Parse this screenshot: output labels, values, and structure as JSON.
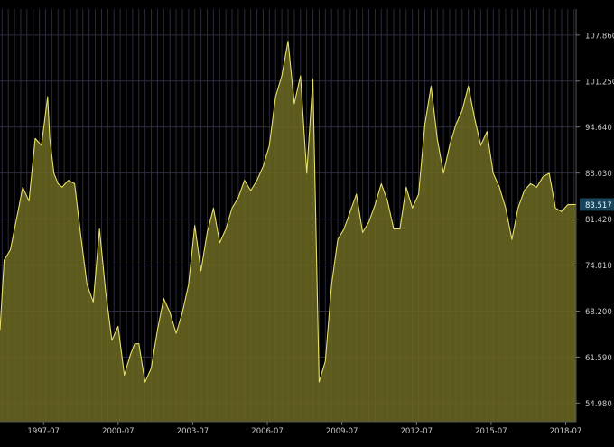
{
  "colors": {
    "background": "#000000",
    "grid": "#2b2b3e",
    "line": "#e6e06a",
    "fill": "#6d6a22",
    "axis_text": "#c8c8c8",
    "badge_bg": "#16455c",
    "badge_text": "#e8f4fa"
  },
  "chart_data": {
    "type": "area",
    "title": "",
    "xlabel": "",
    "ylabel": "",
    "x_tick_labels": [
      "1997-07",
      "2000-07",
      "2003-07",
      "2006-07",
      "2009-07",
      "2012-07",
      "2015-07",
      "2018-07"
    ],
    "y_tick_labels": [
      "54.980",
      "61.590",
      "68.200",
      "74.810",
      "81.420",
      "88.030",
      "94.640",
      "101.250",
      "107.860"
    ],
    "ylim": [
      52.3,
      111.6
    ],
    "xlim": [
      "1995-10",
      "2018-12"
    ],
    "grid": true,
    "last_value_label": "83.517",
    "series": [
      {
        "x": [
          "1995-10",
          "1995-12",
          "1996-03",
          "1996-06",
          "1996-09",
          "1996-12",
          "1997-03",
          "1997-06",
          "1997-09",
          "1997-10",
          "1997-12",
          "1998-02",
          "1998-04",
          "1998-07",
          "1998-10",
          "1999-01",
          "1999-04",
          "1999-07",
          "1999-10",
          "2000-01",
          "2000-04",
          "2000-07",
          "2000-10",
          "2001-01",
          "2001-03",
          "2001-05",
          "2001-08",
          "2001-11",
          "2002-02",
          "2002-05",
          "2002-08",
          "2002-11",
          "2003-02",
          "2003-05",
          "2003-08",
          "2003-11",
          "2004-02",
          "2004-05",
          "2004-08",
          "2004-11",
          "2005-02",
          "2005-05",
          "2005-08",
          "2005-11",
          "2006-02",
          "2006-05",
          "2006-08",
          "2006-11",
          "2007-02",
          "2007-05",
          "2007-08",
          "2007-11",
          "2008-02",
          "2008-05",
          "2008-08",
          "2008-11",
          "2009-02",
          "2009-05",
          "2009-08",
          "2009-11",
          "2010-02",
          "2010-05",
          "2010-08",
          "2010-11",
          "2011-02",
          "2011-05",
          "2011-08",
          "2011-11",
          "2012-02",
          "2012-05",
          "2012-08",
          "2012-11",
          "2013-02",
          "2013-05",
          "2013-08",
          "2013-11",
          "2014-02",
          "2014-05",
          "2014-08",
          "2014-11",
          "2015-02",
          "2015-05",
          "2015-08",
          "2015-11",
          "2016-02",
          "2016-05",
          "2016-08",
          "2016-11",
          "2017-02",
          "2017-05",
          "2017-08",
          "2017-11",
          "2018-02",
          "2018-05",
          "2018-08",
          "2018-12"
        ],
        "values": [
          65.5,
          75.5,
          77.0,
          81.5,
          86.0,
          84.0,
          93.0,
          92.0,
          99.0,
          93.0,
          88.0,
          86.5,
          86.0,
          87.0,
          86.5,
          79.0,
          72.0,
          69.5,
          80.0,
          71.0,
          64.0,
          66.0,
          59.0,
          62.0,
          63.5,
          63.5,
          58.0,
          60.0,
          65.5,
          70.0,
          68.0,
          65.0,
          68.0,
          72.0,
          80.5,
          74.0,
          79.5,
          83.0,
          78.0,
          80.0,
          83.0,
          84.5,
          87.0,
          85.5,
          87.0,
          89.0,
          92.0,
          99.0,
          102.0,
          107.0,
          98.0,
          102.0,
          88.0,
          101.5,
          58.0,
          61.0,
          72.0,
          78.5,
          80.0,
          82.5,
          85.0,
          79.5,
          81.0,
          83.5,
          86.5,
          84.0,
          80.0,
          80.0,
          86.0,
          83.0,
          85.0,
          95.0,
          100.5,
          93.0,
          88.0,
          92.0,
          95.0,
          97.0,
          100.5,
          96.0,
          92.0,
          94.0,
          88.0,
          86.0,
          83.0,
          78.5,
          83.0,
          85.5,
          86.5,
          86.0,
          87.5,
          88.0,
          83.0,
          82.5,
          83.5,
          83.517
        ]
      }
    ]
  }
}
